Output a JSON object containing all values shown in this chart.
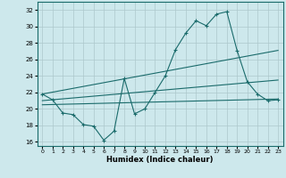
{
  "xlabel": "Humidex (Indice chaleur)",
  "ylabel": "",
  "xlim": [
    -0.5,
    23.5
  ],
  "ylim": [
    15.5,
    33
  ],
  "xticks": [
    0,
    1,
    2,
    3,
    4,
    5,
    6,
    7,
    8,
    9,
    10,
    11,
    12,
    13,
    14,
    15,
    16,
    17,
    18,
    19,
    20,
    21,
    22,
    23
  ],
  "yticks": [
    16,
    18,
    20,
    22,
    24,
    26,
    28,
    30,
    32
  ],
  "background_color": "#cde8ec",
  "grid_color": "#adc8cc",
  "line_color": "#1a6b6b",
  "line1_x": [
    0,
    1,
    2,
    3,
    4,
    5,
    6,
    7,
    8,
    9,
    10,
    11,
    12,
    13,
    14,
    15,
    16,
    17,
    18,
    19,
    20,
    21,
    22,
    23
  ],
  "line1_y": [
    21.8,
    21.1,
    19.5,
    19.3,
    18.1,
    17.9,
    16.2,
    17.3,
    23.7,
    19.4,
    20.0,
    22.0,
    24.0,
    27.2,
    29.2,
    30.7,
    30.1,
    31.5,
    31.8,
    27.1,
    23.3,
    21.8,
    21.0,
    21.1
  ],
  "line2_x": [
    0,
    23
  ],
  "line2_y": [
    21.8,
    27.1
  ],
  "line3_x": [
    0,
    23
  ],
  "line3_y": [
    21.0,
    23.5
  ],
  "line4_x": [
    0,
    23
  ],
  "line4_y": [
    20.5,
    21.2
  ]
}
